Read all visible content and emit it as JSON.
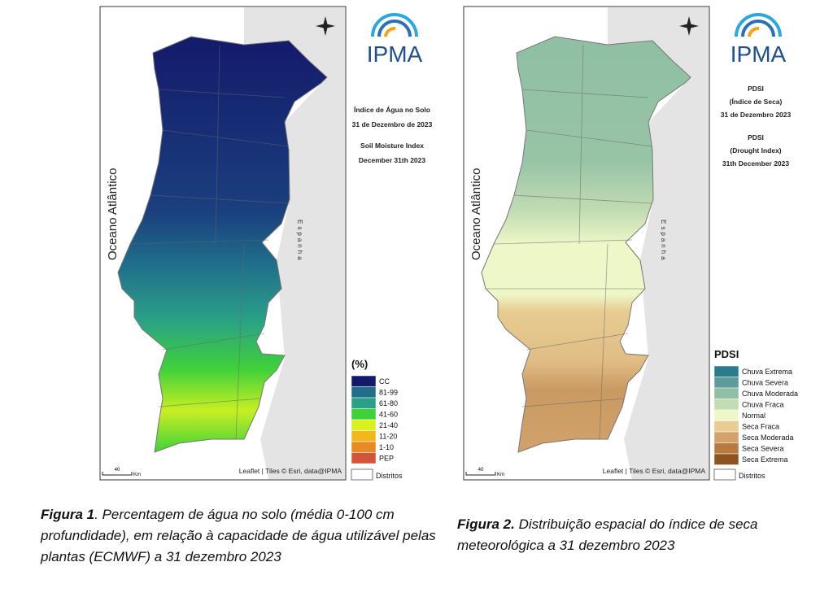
{
  "figures": [
    {
      "logo": "IPMA",
      "map_title": [
        "Índice de Água no Solo",
        "31 de Dezembro de 2023",
        "Soil Moisture Index",
        "December 31th 2023"
      ],
      "ocean_label": "Oceano Atlântico",
      "country_label": "Espanha",
      "legend_title": "(%)",
      "legend": [
        {
          "label": "CC",
          "color": "#141a6b"
        },
        {
          "label": "81-99",
          "color": "#1f6f8b"
        },
        {
          "label": "61-80",
          "color": "#2aa087"
        },
        {
          "label": "41-60",
          "color": "#3fd13a"
        },
        {
          "label": "21-40",
          "color": "#d9f21c"
        },
        {
          "label": "11-20",
          "color": "#f0b81a"
        },
        {
          "label": "1-10",
          "color": "#e88a25"
        },
        {
          "label": "PEP",
          "color": "#d2553a"
        }
      ],
      "districts_label": "Distritos",
      "attribution": "Leaflet | Tiles © Esri, data@IPMA",
      "scale_value": "40",
      "scale_unit": "Km",
      "caption_label": "Figura 1",
      "caption_text": ". Percentagem de água no solo (média 0-100 cm profundidade), em relação à capacidade de água utilizável pelas plantas (ECMWF) a 31 dezembro 2023"
    },
    {
      "logo": "IPMA",
      "map_title": [
        "PDSI",
        "(Índice de Seca)",
        "31 de Dezembro 2023",
        "PDSI",
        "(Drought Index)",
        "31th December 2023"
      ],
      "ocean_label": "Oceano Atlântico",
      "country_label": "Espanha",
      "legend_title": "PDSI",
      "legend": [
        {
          "label": "Chuva Extrema",
          "color": "#2b7b8c"
        },
        {
          "label": "Chuva Severa",
          "color": "#5d9c9a"
        },
        {
          "label": "Chuva Moderada",
          "color": "#8fbfa4"
        },
        {
          "label": "Chuva Fraca",
          "color": "#c2dcb3"
        },
        {
          "label": "Normal",
          "color": "#eef7c8"
        },
        {
          "label": "Seca Fraca",
          "color": "#e8cc91"
        },
        {
          "label": "Seca Moderada",
          "color": "#d1a26b"
        },
        {
          "label": "Seca Severa",
          "color": "#b9793f"
        },
        {
          "label": "Seca Extrema",
          "color": "#8e5420"
        }
      ],
      "districts_label": "Distritos",
      "attribution": "Leaflet | Tiles © Esri, data@IPMA",
      "scale_value": "40",
      "scale_unit": "Km",
      "caption_label": "Figura 2.",
      "caption_text": " Distribuição espacial do índice de seca meteorológica a 31 dezembro 2023"
    }
  ]
}
